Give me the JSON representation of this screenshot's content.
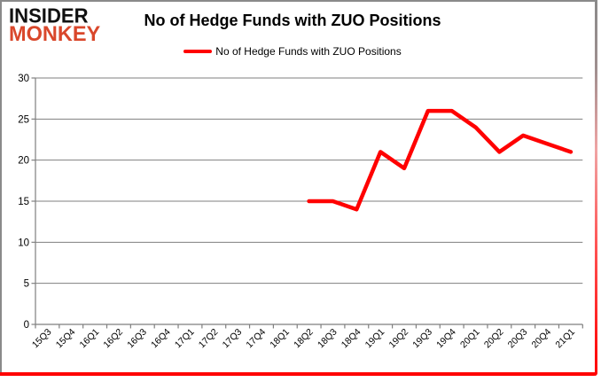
{
  "logo": {
    "line1": "INSIDER",
    "line2": "MONKEY"
  },
  "title": "No of Hedge Funds with ZUO Positions",
  "legend": {
    "label": "No of Hedge Funds with ZUO Positions",
    "swatch_color": "#ff0000"
  },
  "colors": {
    "line": "#ff0000",
    "grid": "#7f7f7f",
    "axis": "#7f7f7f",
    "text": "#000000",
    "logo_red": "#d9472b",
    "frame_gray": "#8a8a8a",
    "frame_red": "#ff0000"
  },
  "chart_data": {
    "type": "line",
    "title": "No of Hedge Funds with ZUO Positions",
    "categories": [
      "15Q3",
      "15Q4",
      "16Q1",
      "16Q2",
      "16Q3",
      "16Q4",
      "17Q1",
      "17Q2",
      "17Q3",
      "17Q4",
      "18Q1",
      "18Q2",
      "18Q3",
      "18Q4",
      "19Q1",
      "19Q2",
      "19Q3",
      "19Q4",
      "20Q1",
      "20Q2",
      "20Q3",
      "20Q4",
      "21Q1"
    ],
    "series": [
      {
        "name": "No of Hedge Funds with ZUO Positions",
        "color": "#ff0000",
        "values": [
          null,
          null,
          null,
          null,
          null,
          null,
          null,
          null,
          null,
          null,
          null,
          15,
          15,
          14,
          21,
          19,
          26,
          26,
          24,
          21,
          23,
          22,
          21
        ]
      }
    ],
    "xlabel": "",
    "ylabel": "",
    "ylim": [
      0,
      30
    ],
    "ytick_interval": 5,
    "grid": true,
    "legend_position": "top"
  }
}
